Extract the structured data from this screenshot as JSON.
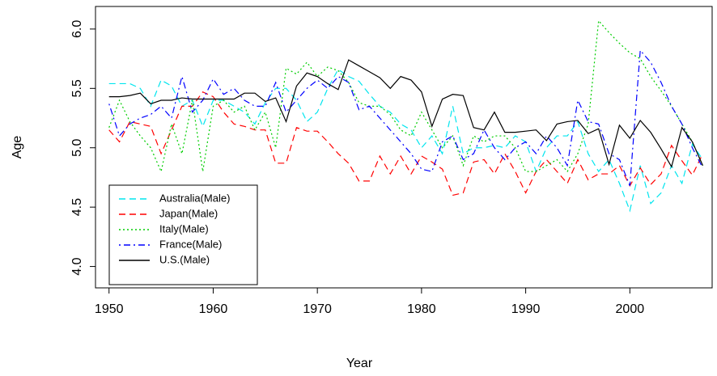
{
  "chart_data": {
    "type": "line",
    "x_label": "Year",
    "y_label": "Age",
    "x": [
      1950,
      1951,
      1952,
      1953,
      1954,
      1955,
      1956,
      1957,
      1958,
      1959,
      1960,
      1961,
      1962,
      1963,
      1964,
      1965,
      1966,
      1967,
      1968,
      1969,
      1970,
      1971,
      1972,
      1973,
      1974,
      1975,
      1976,
      1977,
      1978,
      1979,
      1980,
      1981,
      1982,
      1983,
      1984,
      1985,
      1986,
      1987,
      1988,
      1989,
      1990,
      1991,
      1992,
      1993,
      1994,
      1995,
      1996,
      1997,
      1998,
      1999,
      2000,
      2001,
      2002,
      2003,
      2004,
      2005,
      2006,
      2007
    ],
    "xlim": [
      1948.7,
      2007.9
    ],
    "ylim": [
      3.82,
      6.19
    ],
    "xticks": [
      1950,
      1960,
      1970,
      1980,
      1990,
      2000
    ],
    "yticks": [
      {
        "value": 4,
        "label": "4.0"
      },
      4.5,
      {
        "value": 5,
        "label": "5.0"
      },
      5.5,
      {
        "value": 6,
        "label": "6.0"
      }
    ],
    "legend_position": "bottomleft",
    "series": [
      {
        "name": "Australia(Male)",
        "color": "#00e5ee",
        "linestyle": "dashed",
        "values": [
          5.54,
          5.54,
          5.54,
          5.5,
          5.35,
          5.57,
          5.52,
          5.35,
          5.4,
          5.18,
          5.4,
          5.4,
          5.35,
          5.3,
          5.2,
          5.38,
          5.5,
          5.5,
          5.4,
          5.22,
          5.3,
          5.5,
          5.66,
          5.6,
          5.56,
          5.45,
          5.35,
          5.3,
          5.2,
          5.15,
          5.0,
          5.1,
          4.95,
          5.35,
          4.95,
          5.0,
          5.0,
          5.02,
          5.0,
          5.1,
          5.05,
          4.8,
          5.0,
          5.1,
          5.1,
          5.22,
          4.95,
          4.8,
          4.9,
          4.7,
          4.47,
          4.85,
          4.53,
          4.62,
          4.85,
          4.7,
          5.03,
          4.9
        ]
      },
      {
        "name": "Japan(Male)",
        "color": "#ff0000",
        "linestyle": "dashed",
        "values": [
          5.15,
          5.05,
          5.22,
          5.2,
          5.18,
          4.95,
          5.15,
          5.35,
          5.35,
          5.47,
          5.43,
          5.3,
          5.2,
          5.18,
          5.15,
          5.15,
          4.87,
          4.87,
          5.17,
          5.14,
          5.14,
          5.05,
          4.95,
          4.87,
          4.72,
          4.72,
          4.93,
          4.78,
          4.93,
          4.78,
          4.93,
          4.88,
          4.82,
          4.6,
          4.62,
          4.88,
          4.9,
          4.78,
          4.95,
          4.8,
          4.62,
          4.8,
          4.9,
          4.8,
          4.7,
          4.9,
          4.73,
          4.78,
          4.78,
          4.85,
          4.68,
          4.83,
          4.69,
          4.78,
          5.02,
          4.89,
          4.77,
          4.95
        ]
      },
      {
        "name": "Italy(Male)",
        "color": "#00cd00",
        "linestyle": "dotted",
        "values": [
          5.17,
          5.4,
          5.22,
          5.1,
          5.0,
          4.8,
          5.2,
          4.95,
          5.4,
          4.8,
          5.35,
          5.4,
          5.3,
          5.35,
          5.15,
          5.3,
          5.0,
          5.67,
          5.62,
          5.72,
          5.6,
          5.68,
          5.65,
          5.55,
          5.38,
          5.35,
          5.35,
          5.28,
          5.15,
          5.1,
          5.3,
          5.15,
          5.0,
          5.1,
          4.85,
          5.1,
          5.05,
          5.1,
          5.1,
          5.0,
          4.8,
          4.8,
          4.85,
          4.9,
          4.8,
          4.95,
          5.2,
          6.07,
          5.97,
          5.88,
          5.8,
          5.75,
          5.6,
          5.48,
          5.35,
          5.2,
          5.05,
          4.85
        ]
      },
      {
        "name": "France(Male)",
        "color": "#0000ff",
        "linestyle": "dotdash",
        "values": [
          5.37,
          5.1,
          5.2,
          5.25,
          5.28,
          5.35,
          5.25,
          5.6,
          5.3,
          5.4,
          5.58,
          5.45,
          5.5,
          5.4,
          5.35,
          5.35,
          5.55,
          5.3,
          5.4,
          5.5,
          5.57,
          5.5,
          5.6,
          5.55,
          5.32,
          5.35,
          5.25,
          5.15,
          5.05,
          4.95,
          4.82,
          4.8,
          5.05,
          5.1,
          4.9,
          4.95,
          5.15,
          5.0,
          4.9,
          5.0,
          5.05,
          4.95,
          5.1,
          5.0,
          4.85,
          5.4,
          5.22,
          5.2,
          4.95,
          4.9,
          4.68,
          5.82,
          5.72,
          5.55,
          5.35,
          5.2,
          5.0,
          4.83
        ]
      },
      {
        "name": "U.S.(Male)",
        "color": "#000000",
        "linestyle": "solid",
        "values": [
          5.43,
          5.43,
          5.44,
          5.46,
          5.37,
          5.4,
          5.4,
          5.42,
          5.41,
          5.41,
          5.41,
          5.41,
          5.41,
          5.46,
          5.46,
          5.39,
          5.42,
          5.22,
          5.52,
          5.63,
          5.6,
          5.54,
          5.49,
          5.74,
          5.69,
          5.64,
          5.59,
          5.5,
          5.6,
          5.57,
          5.47,
          5.18,
          5.41,
          5.45,
          5.44,
          5.17,
          5.15,
          5.3,
          5.13,
          5.13,
          5.14,
          5.15,
          5.06,
          5.2,
          5.22,
          5.23,
          5.12,
          5.16,
          4.86,
          5.19,
          5.08,
          5.23,
          5.13,
          4.99,
          4.84,
          5.17,
          5.05,
          4.85
        ]
      }
    ]
  }
}
